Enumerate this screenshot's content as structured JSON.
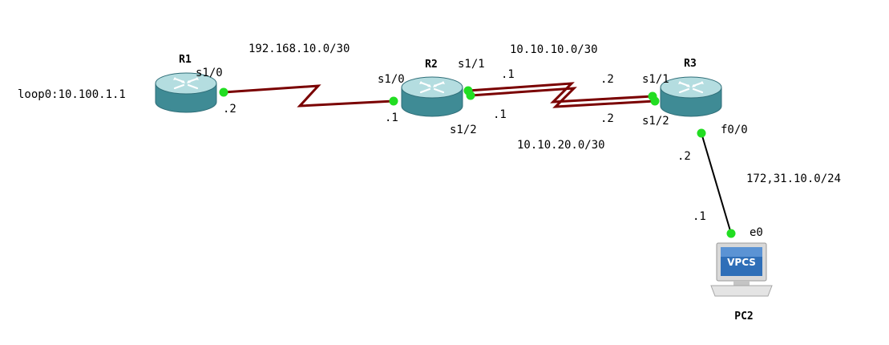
{
  "colors": {
    "serial_link": "#7a0000",
    "ethernet_link": "#000000",
    "port_dot": "#22dd22",
    "router_top": "#b4dde0",
    "router_side": "#3f8b95"
  },
  "devices": {
    "r1": {
      "name": "R1",
      "icon": "router-icon",
      "extra": "loop0:10.100.1.1"
    },
    "r2": {
      "name": "R2",
      "icon": "router-icon"
    },
    "r3": {
      "name": "R3",
      "icon": "router-icon"
    },
    "pc2": {
      "name": "PC2",
      "icon": "vpcs-computer-icon",
      "screen_text": "VPCS"
    }
  },
  "links": {
    "r1_r2": {
      "network": "192.168.10.0/30",
      "r1_port": "s1/0",
      "r1_ip": ".2",
      "r2_port": "s1/0",
      "r2_ip": ".1"
    },
    "r2_r3_a": {
      "network": "10.10.10.0/30",
      "r2_port": "s1/1",
      "r2_ip": ".1",
      "r3_port": "s1/1",
      "r3_ip": ".2"
    },
    "r2_r3_b": {
      "network": "10.10.20.0/30",
      "r2_port": "s1/2",
      "r2_ip": ".1",
      "r3_port": "s1/2",
      "r3_ip": ".2"
    },
    "r3_pc2": {
      "network": "172,31.10.0/24",
      "r3_port": "f0/0",
      "r3_ip": ".2",
      "pc2_port": "e0",
      "pc2_ip": ".1"
    }
  }
}
